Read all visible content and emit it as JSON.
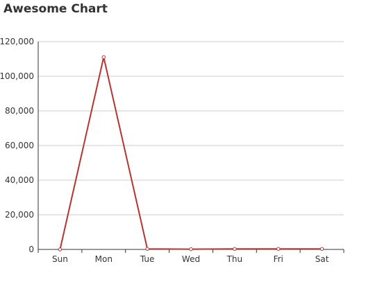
{
  "chart_data": {
    "type": "line",
    "title": "Awesome Chart",
    "xlabel": "",
    "ylabel": "",
    "categories": [
      "Sun",
      "Mon",
      "Tue",
      "Wed",
      "Thu",
      "Fri",
      "Sat"
    ],
    "series": [
      {
        "values": [
          0,
          111000,
          300,
          150,
          300,
          300,
          300
        ],
        "color": "#b83232"
      }
    ],
    "ylim": [
      0,
      120000
    ],
    "yticks": [
      0,
      20000,
      40000,
      60000,
      80000,
      100000,
      120000
    ],
    "ytick_labels": [
      "0",
      "20,000",
      "40,000",
      "60,000",
      "80,000",
      "100,000",
      "120,000"
    ],
    "grid": "horizontal",
    "legend": "none"
  }
}
